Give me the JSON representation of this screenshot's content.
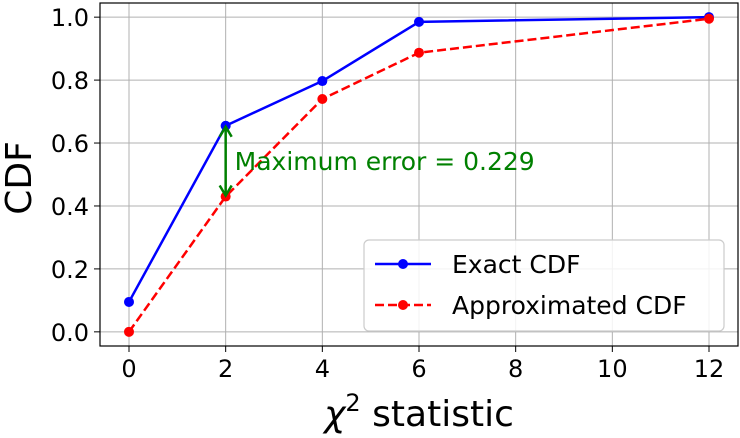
{
  "chart_data": {
    "type": "line",
    "xlabel": "statistic",
    "xlabel_symbol": "χ",
    "xlabel_superscript": "2",
    "ylabel": "CDF",
    "xlim": [
      -0.6,
      12.6
    ],
    "ylim": [
      -0.045,
      1.045
    ],
    "xticks": [
      0,
      2,
      4,
      6,
      8,
      10,
      12
    ],
    "yticks": [
      0.0,
      0.2,
      0.4,
      0.6,
      0.8,
      1.0
    ],
    "xtick_labels": [
      "0",
      "2",
      "4",
      "6",
      "8",
      "10",
      "12"
    ],
    "ytick_labels": [
      "0.0",
      "0.2",
      "0.4",
      "0.6",
      "0.8",
      "1.0"
    ],
    "grid": true,
    "legend_position": "bottom-right",
    "series": [
      {
        "name": "Exact CDF",
        "color": "#0000ff",
        "style": "solid",
        "marker": "circle",
        "x": [
          0,
          2,
          4,
          6,
          12
        ],
        "y": [
          0.095,
          0.655,
          0.797,
          0.985,
          1.0
        ]
      },
      {
        "name": "Approximated CDF",
        "color": "#ff0000",
        "style": "dashed",
        "marker": "circle",
        "x": [
          0,
          2,
          4,
          6,
          12
        ],
        "y": [
          0.0,
          0.43,
          0.74,
          0.887,
          0.995
        ]
      }
    ],
    "annotation": {
      "text": "Maximum error = 0.229",
      "color": "#008000",
      "x": 2,
      "y_from": 0.43,
      "y_to": 0.655
    }
  }
}
